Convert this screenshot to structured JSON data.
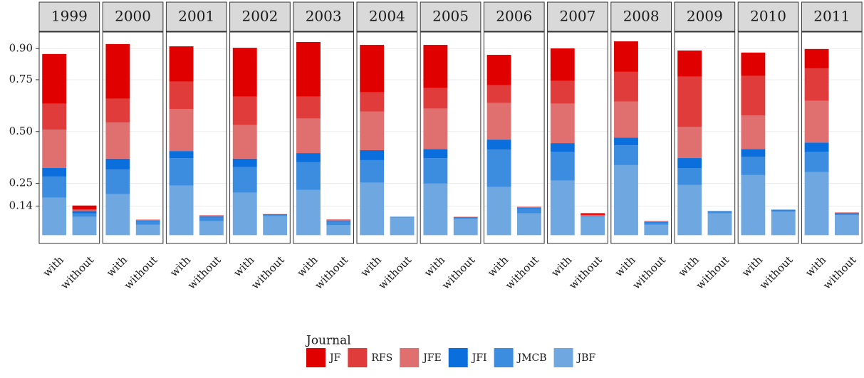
{
  "chart_data": {
    "type": "stacked-bar",
    "facets": [
      "1999",
      "2000",
      "2001",
      "2002",
      "2003",
      "2004",
      "2005",
      "2006",
      "2007",
      "2008",
      "2009",
      "2010",
      "2011"
    ],
    "categories": [
      "with",
      "without"
    ],
    "legend_title": "Journal",
    "ylim": [
      -0.04,
      0.98
    ],
    "yticks": [
      0.14,
      0.25,
      {
        "value": 0.5,
        "label": "0.50"
      },
      0.75,
      {
        "value": 0.9,
        "label": "0.90"
      }
    ],
    "grid": true,
    "series": [
      {
        "name": "JF",
        "color": "#e00000",
        "values": [
          [
            0.239,
            0.019
          ],
          [
            0.263,
            0.001
          ],
          [
            0.17,
            0.001
          ],
          [
            0.235,
            0
          ],
          [
            0.263,
            0.002
          ],
          [
            0.229,
            0
          ],
          [
            0.208,
            0
          ],
          [
            0.146,
            0.001
          ],
          [
            0.157,
            0.007
          ],
          [
            0.147,
            0.001
          ],
          [
            0.126,
            0
          ],
          [
            0.113,
            0
          ],
          [
            0.093,
            0.003
          ]
        ]
      },
      {
        "name": "RFS",
        "color": "#e03c3c",
        "values": [
          [
            0.126,
            0.005
          ],
          [
            0.116,
            0.001
          ],
          [
            0.133,
            0.002
          ],
          [
            0.137,
            0
          ],
          [
            0.106,
            0.002
          ],
          [
            0.092,
            0
          ],
          [
            0.099,
            0.001
          ],
          [
            0.086,
            0.001
          ],
          [
            0.109,
            0.004
          ],
          [
            0.143,
            0.002
          ],
          [
            0.243,
            0
          ],
          [
            0.191,
            0
          ],
          [
            0.157,
            0.001
          ]
        ]
      },
      {
        "name": "JFE",
        "color": "#e07070",
        "values": [
          [
            0.185,
            0.003
          ],
          [
            0.174,
            0.002
          ],
          [
            0.202,
            0.003
          ],
          [
            0.163,
            0.001
          ],
          [
            0.167,
            0.002
          ],
          [
            0.187,
            0
          ],
          [
            0.195,
            0.001
          ],
          [
            0.177,
            0.002
          ],
          [
            0.191,
            0.002
          ],
          [
            0.174,
            0.001
          ],
          [
            0.15,
            0
          ],
          [
            0.161,
            0
          ],
          [
            0.201,
            0.001
          ]
        ]
      },
      {
        "name": "JFI",
        "color": "#0a6fdc",
        "values": [
          [
            0.041,
            0.01
          ],
          [
            0.052,
            0.003
          ],
          [
            0.034,
            0.005
          ],
          [
            0.041,
            0.002
          ],
          [
            0.044,
            0.004
          ],
          [
            0.048,
            0
          ],
          [
            0.044,
            0.002
          ],
          [
            0.048,
            0.003
          ],
          [
            0.041,
            0.001
          ],
          [
            0.038,
            0.003
          ],
          [
            0.048,
            0.003
          ],
          [
            0.037,
            0.004
          ],
          [
            0.044,
            0.002
          ]
        ]
      },
      {
        "name": "JMCB",
        "color": "#3c8ce0",
        "values": [
          [
            0.102,
            0.017
          ],
          [
            0.119,
            0.017
          ],
          [
            0.133,
            0.017
          ],
          [
            0.123,
            0.007
          ],
          [
            0.134,
            0.017
          ],
          [
            0.109,
            0.004
          ],
          [
            0.123,
            0.007
          ],
          [
            0.181,
            0.024
          ],
          [
            0.14,
            0.003
          ],
          [
            0.095,
            0.01
          ],
          [
            0.082,
            0.007
          ],
          [
            0.089,
            0.006
          ],
          [
            0.099,
            0.006
          ]
        ]
      },
      {
        "name": "JBF",
        "color": "#6fa8e0",
        "values": [
          [
            0.181,
            0.089
          ],
          [
            0.198,
            0.051
          ],
          [
            0.239,
            0.068
          ],
          [
            0.205,
            0.092
          ],
          [
            0.218,
            0.048
          ],
          [
            0.253,
            0.085
          ],
          [
            0.249,
            0.078
          ],
          [
            0.232,
            0.106
          ],
          [
            0.263,
            0.089
          ],
          [
            0.338,
            0.051
          ],
          [
            0.242,
            0.106
          ],
          [
            0.29,
            0.113
          ],
          [
            0.304,
            0.096
          ]
        ]
      }
    ]
  }
}
